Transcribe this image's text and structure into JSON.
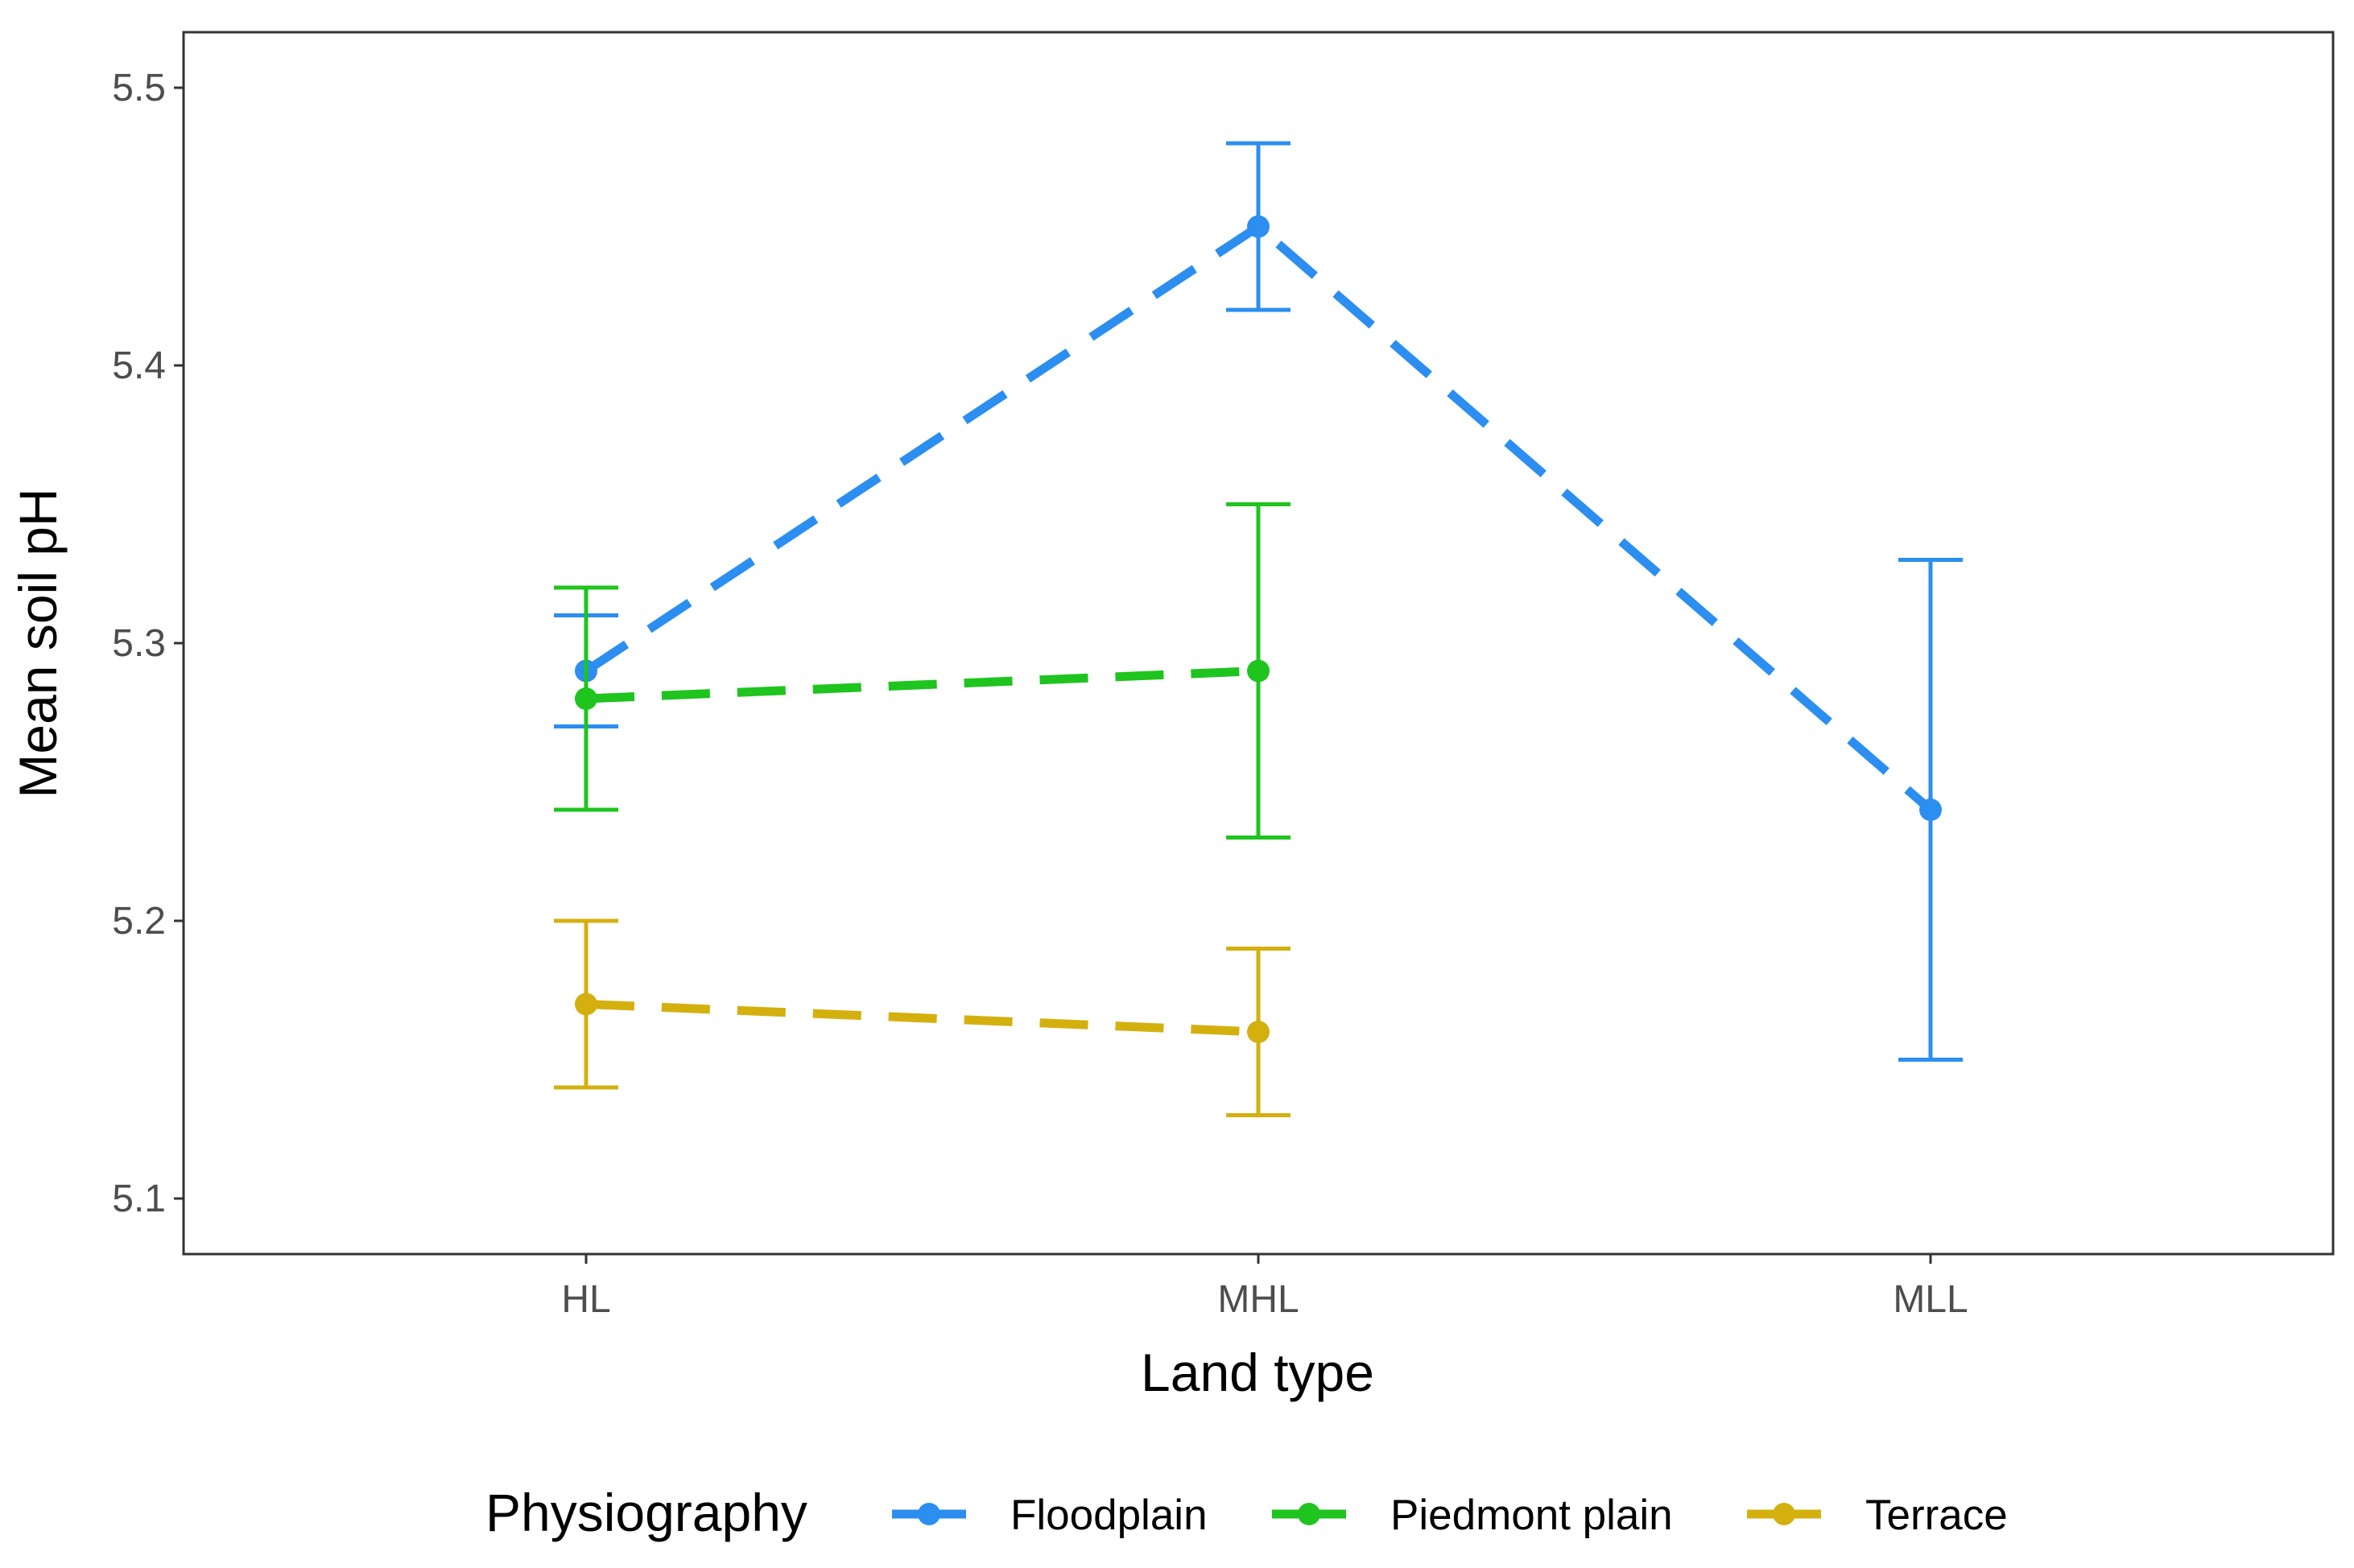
{
  "chart_data": {
    "type": "line",
    "title": "",
    "xlabel": "Land type",
    "ylabel": "Mean soil pH",
    "categories": [
      "HL",
      "MHL",
      "MLL"
    ],
    "ylim": [
      5.08,
      5.52
    ],
    "yticks": [
      5.1,
      5.2,
      5.3,
      5.4,
      5.5
    ],
    "ytick_labels": [
      "5.1",
      "5.2",
      "5.3",
      "5.4",
      "5.5"
    ],
    "grid": false,
    "legend_title": "Physiography",
    "legend_position": "bottom",
    "series": [
      {
        "name": "Floodplain",
        "color": "#2b8ef0",
        "points": [
          {
            "x": "HL",
            "y": 5.29,
            "ymin": 5.27,
            "ymax": 5.31
          },
          {
            "x": "MHL",
            "y": 5.45,
            "ymin": 5.42,
            "ymax": 5.48
          },
          {
            "x": "MLL",
            "y": 5.24,
            "ymin": 5.15,
            "ymax": 5.33
          }
        ]
      },
      {
        "name": "Piedmont plain",
        "color": "#1fc41f",
        "points": [
          {
            "x": "HL",
            "y": 5.28,
            "ymin": 5.24,
            "ymax": 5.32
          },
          {
            "x": "MHL",
            "y": 5.29,
            "ymin": 5.23,
            "ymax": 5.35
          }
        ]
      },
      {
        "name": "Terrace",
        "color": "#d4b00f",
        "points": [
          {
            "x": "HL",
            "y": 5.17,
            "ymin": 5.14,
            "ymax": 5.2
          },
          {
            "x": "MHL",
            "y": 5.16,
            "ymin": 5.13,
            "ymax": 5.19
          }
        ]
      }
    ]
  }
}
